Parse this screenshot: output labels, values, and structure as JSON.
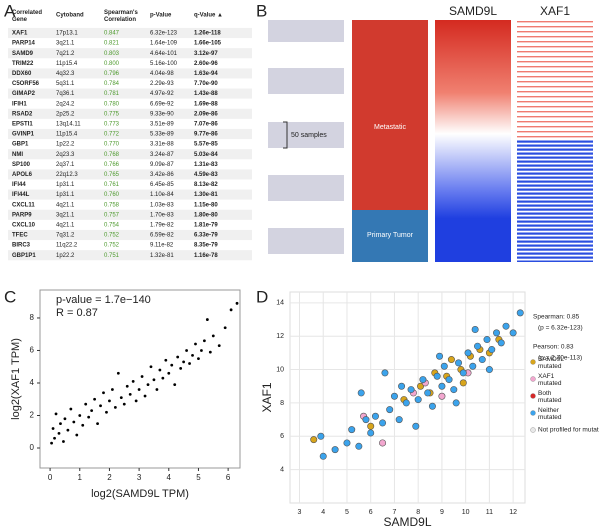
{
  "panel_labels": [
    "A",
    "B",
    "C",
    "D"
  ],
  "table": {
    "headers": [
      "Correlated Gene",
      "Cytoband",
      "Spearman's Correlation",
      "p-Value",
      "q-Value ▲"
    ],
    "rows": [
      [
        "XAF1",
        "17p13.1",
        "0.847",
        "6.32e-123",
        "1.26e-118"
      ],
      [
        "PARP14",
        "3q21.1",
        "0.821",
        "1.64e-109",
        "1.66e-105"
      ],
      [
        "SAMD9",
        "7q21.2",
        "0.803",
        "4.64e-101",
        "3.12e-97"
      ],
      [
        "TRIM22",
        "11p15.4",
        "0.800",
        "5.16e-100",
        "2.60e-96"
      ],
      [
        "DDX60",
        "4q32.3",
        "0.796",
        "4.04e-98",
        "1.63e-94"
      ],
      [
        "C5ORF56",
        "5q31.1",
        "0.784",
        "2.29e-93",
        "7.70e-90"
      ],
      [
        "GIMAP2",
        "7q36.1",
        "0.781",
        "4.97e-92",
        "1.43e-88"
      ],
      [
        "IFIH1",
        "2q24.2",
        "0.780",
        "6.69e-92",
        "1.69e-88"
      ],
      [
        "RSAD2",
        "2p25.2",
        "0.775",
        "9.33e-90",
        "2.09e-86"
      ],
      [
        "EPSTI1",
        "13q14.11",
        "0.773",
        "3.51e-89",
        "7.07e-86"
      ],
      [
        "GVINP1",
        "11p15.4",
        "0.772",
        "5.33e-89",
        "9.77e-86"
      ],
      [
        "GBP1",
        "1p22.2",
        "0.770",
        "3.31e-88",
        "5.57e-85"
      ],
      [
        "NMI",
        "2q23.3",
        "0.768",
        "3.24e-87",
        "5.03e-84"
      ],
      [
        "SP100",
        "2q37.1",
        "0.766",
        "9.09e-87",
        "1.31e-83"
      ],
      [
        "APOL6",
        "22q12.3",
        "0.765",
        "3.42e-86",
        "4.59e-83"
      ],
      [
        "IFI44",
        "1p31.1",
        "0.761",
        "6.45e-85",
        "8.13e-82"
      ],
      [
        "IFI44L",
        "1p31.1",
        "0.760",
        "1.10e-84",
        "1.30e-81"
      ],
      [
        "CXCL11",
        "4q21.1",
        "0.758",
        "1.03e-83",
        "1.15e-80"
      ],
      [
        "PARP9",
        "3q21.1",
        "0.757",
        "1.70e-83",
        "1.80e-80"
      ],
      [
        "CXCL10",
        "4q21.1",
        "0.754",
        "1.79e-82",
        "1.81e-79"
      ],
      [
        "TFEC",
        "7q31.2",
        "0.752",
        "6.59e-82",
        "6.33e-79"
      ],
      [
        "BIRC3",
        "11q22.2",
        "0.752",
        "9.11e-82",
        "8.35e-79"
      ],
      [
        "GBP1P1",
        "1p22.2",
        "0.751",
        "1.32e-81",
        "1.16e-78"
      ]
    ]
  },
  "heatmap": {
    "columns": [
      "SAMD9L",
      "XAF1"
    ],
    "scale_label": "50 samples",
    "groups": [
      "Metastatic",
      "Primary Tumor"
    ]
  },
  "chart_data": [
    {
      "type": "scatter",
      "annotations": [
        "p-value = 1.7e−140",
        "R = 0.87"
      ],
      "x_label": "log2(SAMD9L TPM)",
      "y_label": "log2(XAF1 TPM)",
      "color": "#000000",
      "x": [
        0.05,
        0.1,
        0.15,
        0.2,
        0.3,
        0.35,
        0.45,
        0.5,
        0.6,
        0.7,
        0.8,
        0.9,
        1.0,
        1.1,
        1.2,
        1.3,
        1.4,
        1.5,
        1.6,
        1.7,
        1.8,
        1.9,
        2.0,
        2.1,
        2.2,
        2.3,
        2.4,
        2.5,
        2.6,
        2.7,
        2.8,
        2.9,
        3.0,
        3.1,
        3.2,
        3.3,
        3.4,
        3.5,
        3.6,
        3.7,
        3.8,
        3.9,
        4.0,
        4.1,
        4.2,
        4.3,
        4.4,
        4.5,
        4.6,
        4.7,
        4.8,
        4.9,
        5.0,
        5.1,
        5.2,
        5.4,
        5.5,
        5.7,
        5.9,
        6.1,
        6.3,
        5.3
      ],
      "values": [
        0.3,
        1.2,
        0.6,
        2.1,
        0.9,
        1.5,
        0.4,
        1.8,
        1.1,
        2.4,
        1.6,
        0.8,
        2.0,
        1.4,
        2.7,
        1.9,
        2.3,
        3.0,
        1.5,
        2.6,
        3.4,
        2.2,
        2.9,
        3.6,
        2.5,
        4.6,
        3.1,
        2.7,
        3.8,
        3.3,
        4.1,
        2.9,
        3.6,
        4.4,
        3.2,
        3.9,
        5.0,
        4.2,
        3.6,
        4.8,
        4.3,
        5.4,
        4.6,
        5.1,
        3.9,
        5.6,
        4.9,
        5.3,
        6.0,
        5.2,
        5.7,
        6.4,
        5.5,
        6.0,
        6.6,
        5.9,
        6.9,
        6.3,
        7.4,
        8.5,
        8.9,
        7.9
      ],
      "xlim": [
        -0.34,
        6.4
      ],
      "ylim": [
        -1.23,
        9.72
      ],
      "xticks": [
        0,
        1,
        2,
        3,
        4,
        5,
        6
      ],
      "yticks": [
        0,
        2,
        4,
        6,
        8
      ]
    },
    {
      "type": "scatter",
      "x_label": "SAMD9L",
      "y_label": "XAF1",
      "grid": true,
      "stats": [
        "Spearman: 0.85",
        "(p = 6.32e-123)",
        "Pearson: 0.83",
        "(p = 2.70e-113)"
      ],
      "xlim": [
        2.6,
        12.5
      ],
      "ylim": [
        2,
        14.65
      ],
      "xticks": [
        3,
        4,
        5,
        6,
        7,
        8,
        9,
        10,
        11,
        12
      ],
      "yticks": [
        4,
        6,
        8,
        10,
        12,
        14
      ],
      "series": [
        {
          "name": "SAMD9L mutated",
          "color": "#d8a51c",
          "x": [
            3.6,
            6.0,
            7.4,
            8.1,
            8.7,
            9.2,
            9.4,
            9.8,
            10.2,
            10.6,
            11.0,
            11.4,
            8.5,
            9.9
          ],
          "values": [
            5.8,
            6.6,
            8.2,
            9.0,
            9.8,
            9.6,
            10.6,
            10.0,
            10.8,
            11.2,
            11.0,
            11.8,
            8.6,
            9.2
          ]
        },
        {
          "name": "XAF1 mutated",
          "color": "#f2a7cf",
          "x": [
            6.5,
            7.8,
            8.3,
            9.0,
            10.1,
            5.7
          ],
          "values": [
            5.6,
            8.6,
            9.2,
            8.4,
            9.8,
            7.2
          ]
        },
        {
          "name": "Both mutated",
          "color": "#d62728",
          "x": [],
          "values": []
        },
        {
          "name": "Neither mutated",
          "color": "#3ba3ec",
          "x": [
            4.0,
            4.5,
            5.0,
            5.2,
            5.5,
            5.8,
            6.0,
            6.2,
            6.5,
            6.8,
            7.0,
            7.2,
            7.5,
            7.7,
            8.0,
            8.2,
            8.4,
            8.6,
            8.8,
            9.0,
            9.1,
            9.3,
            9.5,
            9.7,
            9.9,
            10.1,
            10.3,
            10.5,
            10.7,
            10.9,
            11.1,
            11.3,
            11.5,
            11.7,
            12.0,
            12.3,
            6.6,
            7.9,
            8.9,
            9.6,
            10.4,
            11.0,
            3.9,
            5.6,
            7.3
          ],
          "values": [
            4.8,
            5.2,
            5.6,
            6.4,
            5.4,
            7.0,
            6.2,
            7.2,
            6.8,
            7.6,
            8.4,
            7.0,
            8.0,
            8.8,
            8.2,
            9.4,
            8.6,
            7.8,
            9.6,
            9.0,
            10.2,
            9.4,
            8.8,
            10.4,
            9.8,
            11.0,
            10.2,
            11.4,
            10.6,
            11.8,
            11.2,
            12.2,
            11.6,
            12.6,
            12.2,
            13.4,
            9.8,
            6.6,
            10.8,
            8.0,
            12.4,
            10.0,
            6.0,
            8.6,
            9.0
          ]
        },
        {
          "name": "Not profiled for mutat",
          "color": "#e8e8e8",
          "x": [],
          "values": []
        }
      ]
    }
  ]
}
